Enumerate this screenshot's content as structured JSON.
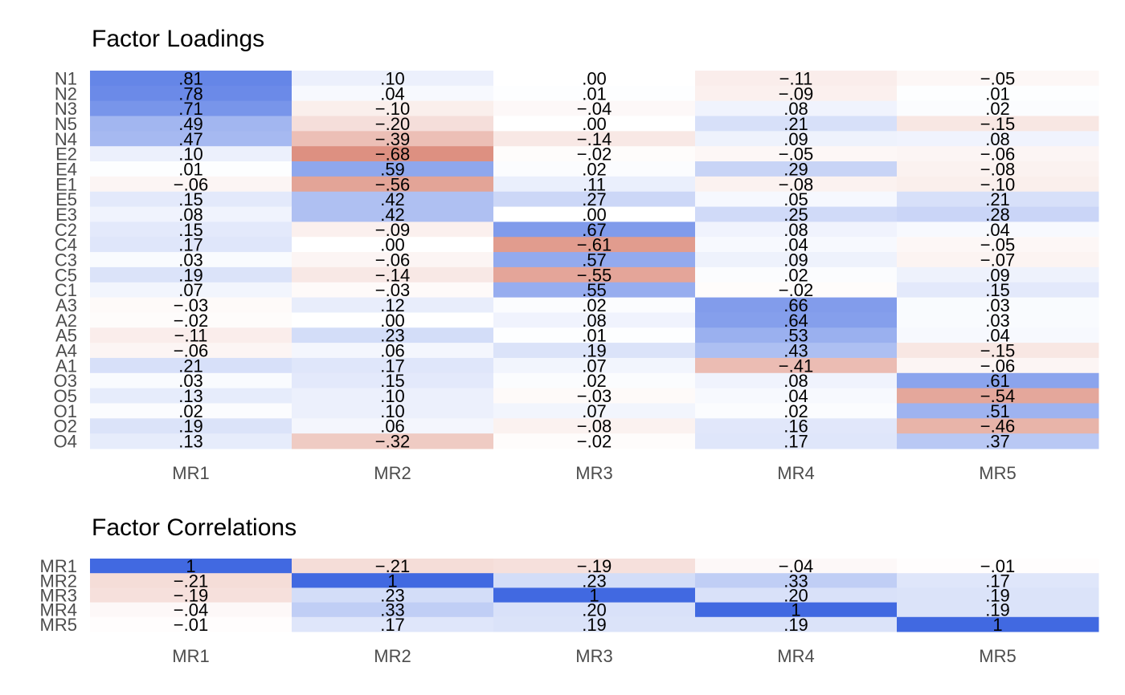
{
  "colors": {
    "positive": "#4169E1",
    "negative": "#CD5C45",
    "neutral": "#FFFFFF"
  },
  "chart_data": [
    {
      "type": "heatmap",
      "title": "Factor Loadings",
      "columns": [
        "MR1",
        "MR2",
        "MR3",
        "MR4",
        "MR5"
      ],
      "rows": [
        "N1",
        "N2",
        "N3",
        "N5",
        "N4",
        "E2",
        "E4",
        "E1",
        "E5",
        "E3",
        "C2",
        "C4",
        "C3",
        "C5",
        "C1",
        "A3",
        "A2",
        "A5",
        "A4",
        "A1",
        "O3",
        "O5",
        "O1",
        "O2",
        "O4"
      ],
      "values": [
        [
          0.81,
          0.1,
          0.0,
          -0.11,
          -0.05
        ],
        [
          0.78,
          0.04,
          0.01,
          -0.09,
          0.01
        ],
        [
          0.71,
          -0.1,
          -0.04,
          0.08,
          0.02
        ],
        [
          0.49,
          -0.2,
          0.0,
          0.21,
          -0.15
        ],
        [
          0.47,
          -0.39,
          -0.14,
          0.09,
          0.08
        ],
        [
          0.1,
          -0.68,
          -0.02,
          -0.05,
          -0.06
        ],
        [
          0.01,
          0.59,
          0.02,
          0.29,
          -0.08
        ],
        [
          -0.06,
          -0.56,
          0.11,
          -0.08,
          -0.1
        ],
        [
          0.15,
          0.42,
          0.27,
          0.05,
          0.21
        ],
        [
          0.08,
          0.42,
          0.0,
          0.25,
          0.28
        ],
        [
          0.15,
          -0.09,
          0.67,
          0.08,
          0.04
        ],
        [
          0.17,
          0.0,
          -0.61,
          0.04,
          -0.05
        ],
        [
          0.03,
          -0.06,
          0.57,
          0.09,
          -0.07
        ],
        [
          0.19,
          -0.14,
          -0.55,
          0.02,
          0.09
        ],
        [
          0.07,
          -0.03,
          0.55,
          -0.02,
          0.15
        ],
        [
          -0.03,
          0.12,
          0.02,
          0.66,
          0.03
        ],
        [
          -0.02,
          0.0,
          0.08,
          0.64,
          0.03
        ],
        [
          -0.11,
          0.23,
          0.01,
          0.53,
          0.04
        ],
        [
          -0.06,
          0.06,
          0.19,
          0.43,
          -0.15
        ],
        [
          0.21,
          0.17,
          0.07,
          -0.41,
          -0.06
        ],
        [
          0.03,
          0.15,
          0.02,
          0.08,
          0.61
        ],
        [
          0.13,
          0.1,
          -0.03,
          0.04,
          -0.54
        ],
        [
          0.02,
          0.1,
          0.07,
          0.02,
          0.51
        ],
        [
          0.19,
          0.06,
          -0.08,
          0.16,
          -0.46
        ],
        [
          0.13,
          -0.32,
          -0.02,
          0.17,
          0.37
        ]
      ],
      "labels": [
        [
          ".81",
          ".10",
          ".00",
          "−.11",
          "−.05"
        ],
        [
          ".78",
          ".04",
          ".01",
          "−.09",
          ".01"
        ],
        [
          ".71",
          "−.10",
          "−.04",
          ".08",
          ".02"
        ],
        [
          ".49",
          "−.20",
          ".00",
          ".21",
          "−.15"
        ],
        [
          ".47",
          "−.39",
          "−.14",
          ".09",
          ".08"
        ],
        [
          ".10",
          "−.68",
          "−.02",
          "−.05",
          "−.06"
        ],
        [
          ".01",
          ".59",
          ".02",
          ".29",
          "−.08"
        ],
        [
          "−.06",
          "−.56",
          ".11",
          "−.08",
          "−.10"
        ],
        [
          ".15",
          ".42",
          ".27",
          ".05",
          ".21"
        ],
        [
          ".08",
          ".42",
          ".00",
          ".25",
          ".28"
        ],
        [
          ".15",
          "−.09",
          ".67",
          ".08",
          ".04"
        ],
        [
          ".17",
          ".00",
          "−.61",
          ".04",
          "−.05"
        ],
        [
          ".03",
          "−.06",
          ".57",
          ".09",
          "−.07"
        ],
        [
          ".19",
          "−.14",
          "−.55",
          ".02",
          ".09"
        ],
        [
          ".07",
          "−.03",
          ".55",
          "−.02",
          ".15"
        ],
        [
          "−.03",
          ".12",
          ".02",
          ".66",
          ".03"
        ],
        [
          "−.02",
          ".00",
          ".08",
          ".64",
          ".03"
        ],
        [
          "−.11",
          ".23",
          ".01",
          ".53",
          ".04"
        ],
        [
          "−.06",
          ".06",
          ".19",
          ".43",
          "−.15"
        ],
        [
          ".21",
          ".17",
          ".07",
          "−.41",
          "−.06"
        ],
        [
          ".03",
          ".15",
          ".02",
          ".08",
          ".61"
        ],
        [
          ".13",
          ".10",
          "−.03",
          ".04",
          "−.54"
        ],
        [
          ".02",
          ".10",
          ".07",
          ".02",
          ".51"
        ],
        [
          ".19",
          ".06",
          "−.08",
          ".16",
          "−.46"
        ],
        [
          ".13",
          "−.32",
          "−.02",
          ".17",
          ".37"
        ]
      ]
    },
    {
      "type": "heatmap",
      "title": "Factor Correlations",
      "columns": [
        "MR1",
        "MR2",
        "MR3",
        "MR4",
        "MR5"
      ],
      "rows": [
        "MR1",
        "MR2",
        "MR3",
        "MR4",
        "MR5"
      ],
      "values": [
        [
          1,
          -0.21,
          -0.19,
          -0.04,
          -0.01
        ],
        [
          -0.21,
          1,
          0.23,
          0.33,
          0.17
        ],
        [
          -0.19,
          0.23,
          1,
          0.2,
          0.19
        ],
        [
          -0.04,
          0.33,
          0.2,
          1,
          0.19
        ],
        [
          -0.01,
          0.17,
          0.19,
          0.19,
          1
        ]
      ],
      "labels": [
        [
          "1",
          "−.21",
          "−.19",
          "−.04",
          "−.01"
        ],
        [
          "−.21",
          "1",
          ".23",
          ".33",
          ".17"
        ],
        [
          "−.19",
          ".23",
          "1",
          ".20",
          ".19"
        ],
        [
          "−.04",
          ".33",
          ".20",
          "1",
          ".19"
        ],
        [
          "−.01",
          ".17",
          ".19",
          ".19",
          "1"
        ]
      ]
    }
  ]
}
